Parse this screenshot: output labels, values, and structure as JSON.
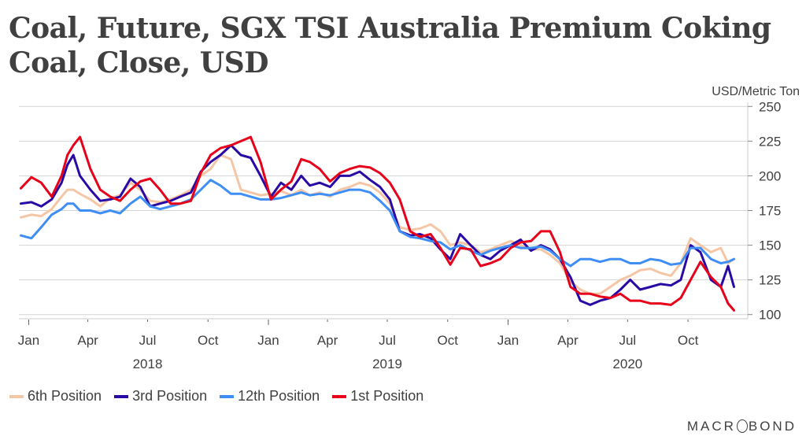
{
  "header": {
    "title": "Coal, Future, SGX TSI Australia Premium Coking Coal, Close, USD",
    "unit_label": "USD/Metric Ton"
  },
  "brand": {
    "before": "MACR",
    "after": "BOND"
  },
  "chart_data": {
    "type": "line",
    "title": "Coal, Future, SGX TSI Australia Premium Coking Coal, Close, USD",
    "xlabel": "",
    "ylabel": "USD/Metric Ton",
    "ylim": [
      97,
      253
    ],
    "xlim": [
      "2017-12-17",
      "2020-12-31"
    ],
    "yticks": [
      100,
      125,
      150,
      175,
      200,
      225,
      250
    ],
    "y_axis_side": "right",
    "grid": true,
    "legend_position": "bottom-left",
    "xticks": [
      {
        "date": "2018-01-01",
        "label": "Jan",
        "major": true
      },
      {
        "date": "2018-04-01",
        "label": "Apr",
        "major": false
      },
      {
        "date": "2018-07-01",
        "label": "Jul",
        "major": false
      },
      {
        "date": "2018-10-01",
        "label": "Oct",
        "major": false
      },
      {
        "date": "2019-01-01",
        "label": "Jan",
        "major": true
      },
      {
        "date": "2019-04-01",
        "label": "Apr",
        "major": false
      },
      {
        "date": "2019-07-01",
        "label": "Jul",
        "major": false
      },
      {
        "date": "2019-10-01",
        "label": "Oct",
        "major": false
      },
      {
        "date": "2020-01-01",
        "label": "Jan",
        "major": true
      },
      {
        "date": "2020-04-01",
        "label": "Apr",
        "major": false
      },
      {
        "date": "2020-07-01",
        "label": "Jul",
        "major": false
      },
      {
        "date": "2020-10-01",
        "label": "Oct",
        "major": false
      }
    ],
    "year_labels": [
      {
        "date": "2018-07-01",
        "label": "2018"
      },
      {
        "date": "2019-07-01",
        "label": "2019"
      },
      {
        "date": "2020-07-01",
        "label": "2020"
      }
    ],
    "x": [
      "2017-12-20",
      "2018-01-05",
      "2018-01-20",
      "2018-02-05",
      "2018-02-20",
      "2018-03-01",
      "2018-03-10",
      "2018-03-20",
      "2018-04-05",
      "2018-04-20",
      "2018-05-05",
      "2018-05-20",
      "2018-06-05",
      "2018-06-20",
      "2018-07-05",
      "2018-07-20",
      "2018-08-05",
      "2018-08-20",
      "2018-09-05",
      "2018-09-20",
      "2018-10-05",
      "2018-10-20",
      "2018-11-05",
      "2018-11-20",
      "2018-12-05",
      "2018-12-20",
      "2019-01-05",
      "2019-01-20",
      "2019-02-05",
      "2019-02-20",
      "2019-03-05",
      "2019-03-20",
      "2019-04-05",
      "2019-04-20",
      "2019-05-05",
      "2019-05-20",
      "2019-06-05",
      "2019-06-20",
      "2019-07-05",
      "2019-07-20",
      "2019-08-05",
      "2019-08-20",
      "2019-09-05",
      "2019-09-20",
      "2019-10-05",
      "2019-10-20",
      "2019-11-05",
      "2019-11-20",
      "2019-12-05",
      "2019-12-20",
      "2020-01-05",
      "2020-01-20",
      "2020-02-05",
      "2020-02-20",
      "2020-03-05",
      "2020-03-20",
      "2020-04-05",
      "2020-04-20",
      "2020-05-05",
      "2020-05-20",
      "2020-06-05",
      "2020-06-20",
      "2020-07-05",
      "2020-07-20",
      "2020-08-05",
      "2020-08-20",
      "2020-09-05",
      "2020-09-20",
      "2020-10-05",
      "2020-10-20",
      "2020-11-05",
      "2020-11-20",
      "2020-12-01",
      "2020-12-10"
    ],
    "series": [
      {
        "name": "6th Position",
        "color": "#f5c6a5",
        "values": [
          170,
          172,
          171,
          176,
          185,
          190,
          190,
          187,
          183,
          178,
          184,
          186,
          195,
          190,
          182,
          181,
          183,
          186,
          190,
          200,
          205,
          215,
          212,
          190,
          188,
          186,
          187,
          189,
          186,
          190,
          186,
          188,
          185,
          190,
          192,
          195,
          193,
          188,
          180,
          163,
          161,
          162,
          165,
          160,
          150,
          152,
          150,
          145,
          147,
          150,
          153,
          150,
          147,
          147,
          143,
          137,
          124,
          118,
          115,
          115,
          120,
          125,
          128,
          132,
          133,
          130,
          128,
          137,
          155,
          150,
          145,
          148,
          137,
          140
        ]
      },
      {
        "name": "3rd Position",
        "color": "#2a0aa5",
        "values": [
          180,
          181,
          178,
          183,
          195,
          208,
          215,
          200,
          190,
          182,
          183,
          185,
          198,
          192,
          178,
          180,
          182,
          185,
          188,
          203,
          210,
          215,
          222,
          215,
          213,
          200,
          185,
          195,
          190,
          200,
          193,
          195,
          192,
          200,
          200,
          203,
          197,
          192,
          183,
          160,
          157,
          158,
          155,
          147,
          140,
          158,
          150,
          143,
          140,
          146,
          150,
          154,
          146,
          150,
          147,
          140,
          127,
          110,
          107,
          110,
          112,
          118,
          125,
          118,
          120,
          122,
          121,
          125,
          150,
          145,
          125,
          120,
          135,
          120
        ]
      },
      {
        "name": "12th Position",
        "color": "#3f8ef5",
        "values": [
          157,
          155,
          163,
          172,
          176,
          180,
          180,
          175,
          175,
          173,
          175,
          173,
          180,
          185,
          178,
          176,
          178,
          180,
          183,
          190,
          197,
          193,
          187,
          187,
          185,
          183,
          183,
          184,
          186,
          188,
          186,
          187,
          186,
          188,
          190,
          190,
          188,
          182,
          175,
          160,
          156,
          155,
          153,
          152,
          147,
          150,
          146,
          143,
          146,
          148,
          150,
          148,
          148,
          149,
          146,
          140,
          135,
          140,
          140,
          138,
          140,
          140,
          137,
          137,
          140,
          139,
          136,
          137,
          148,
          148,
          140,
          137,
          138,
          140
        ]
      },
      {
        "name": "1st Position",
        "color": "#e6001a",
        "values": [
          191,
          199,
          195,
          185,
          200,
          215,
          222,
          228,
          205,
          190,
          185,
          182,
          190,
          196,
          198,
          190,
          180,
          180,
          182,
          202,
          215,
          220,
          222,
          225,
          228,
          210,
          183,
          190,
          196,
          212,
          210,
          205,
          196,
          202,
          205,
          207,
          206,
          202,
          195,
          183,
          160,
          156,
          158,
          148,
          136,
          148,
          147,
          135,
          137,
          140,
          148,
          152,
          153,
          160,
          160,
          145,
          120,
          115,
          115,
          113,
          112,
          115,
          110,
          110,
          108,
          108,
          107,
          112,
          125,
          138,
          127,
          120,
          108,
          103
        ]
      }
    ]
  },
  "legend": [
    {
      "label": "6th Position",
      "color": "#f5c6a5"
    },
    {
      "label": "3rd Position",
      "color": "#2a0aa5"
    },
    {
      "label": "12th Position",
      "color": "#3f8ef5"
    },
    {
      "label": "1st Position",
      "color": "#e6001a"
    }
  ]
}
